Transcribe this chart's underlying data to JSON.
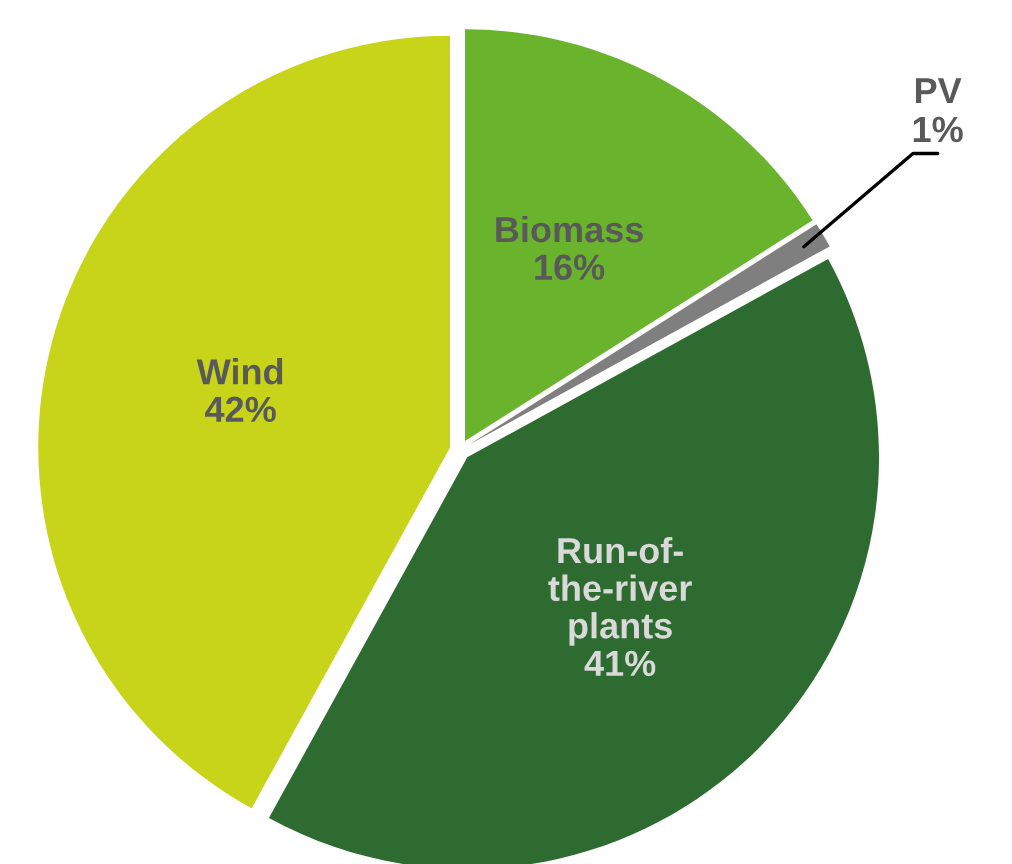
{
  "chart_data": {
    "type": "pie",
    "categories": [
      "Biomass",
      "PV",
      "Run-of-the-river plants",
      "Wind"
    ],
    "values": [
      16,
      1,
      41,
      42
    ],
    "value_labels": [
      "16%",
      "1%",
      "41%",
      "42%"
    ],
    "colors": [
      "#6ab42d",
      "#7f7f7f",
      "#2e6b30",
      "#c8d41a"
    ]
  }
}
